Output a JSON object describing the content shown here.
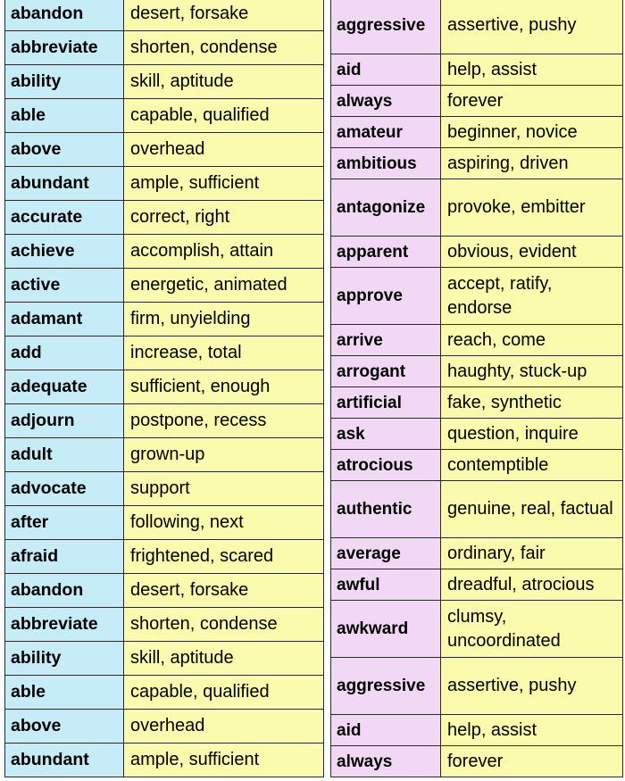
{
  "left": [
    {
      "word": "abandon",
      "syn": "desert, forsake"
    },
    {
      "word": "abbreviate",
      "syn": "shorten, condense"
    },
    {
      "word": "ability",
      "syn": "skill, aptitude"
    },
    {
      "word": "able",
      "syn": "capable, qualified"
    },
    {
      "word": "above",
      "syn": "overhead"
    },
    {
      "word": "abundant",
      "syn": "ample, sufficient"
    },
    {
      "word": "accurate",
      "syn": "correct, right"
    },
    {
      "word": "achieve",
      "syn": "accomplish, attain"
    },
    {
      "word": "active",
      "syn": "energetic, animated"
    },
    {
      "word": "adamant",
      "syn": "firm, unyielding"
    },
    {
      "word": "add",
      "syn": "increase, total"
    },
    {
      "word": "adequate",
      "syn": "sufficient, enough"
    },
    {
      "word": "adjourn",
      "syn": "postpone, recess"
    },
    {
      "word": "adult",
      "syn": "grown-up"
    },
    {
      "word": "advocate",
      "syn": "support"
    },
    {
      "word": "after",
      "syn": "following, next"
    },
    {
      "word": "afraid",
      "syn": "frightened, scared"
    },
    {
      "word": "abandon",
      "syn": "desert, forsake"
    },
    {
      "word": "abbreviate",
      "syn": "shorten, condense"
    },
    {
      "word": "ability",
      "syn": "skill, aptitude"
    },
    {
      "word": "able",
      "syn": "capable, qualified"
    },
    {
      "word": "above",
      "syn": "overhead"
    },
    {
      "word": "abundant",
      "syn": "ample, sufficient"
    }
  ],
  "right": [
    {
      "word": "aggressive",
      "syn": "assertive, pushy"
    },
    {
      "word": "aid",
      "syn": "help, assist"
    },
    {
      "word": "always",
      "syn": "forever"
    },
    {
      "word": "amateur",
      "syn": "beginner, novice"
    },
    {
      "word": "ambitious",
      "syn": "aspiring, driven"
    },
    {
      "word": "antagonize",
      "syn": "provoke, embitter"
    },
    {
      "word": "apparent",
      "syn": "obvious, evident"
    },
    {
      "word": "approve",
      "syn": "accept, ratify, endorse"
    },
    {
      "word": "arrive",
      "syn": "reach, come"
    },
    {
      "word": "arrogant",
      "syn": "haughty, stuck-up"
    },
    {
      "word": "artificial",
      "syn": "fake, synthetic"
    },
    {
      "word": "ask",
      "syn": "question, inquire"
    },
    {
      "word": "atrocious",
      "syn": "contemptible"
    },
    {
      "word": "authentic",
      "syn": "genuine, real, factual"
    },
    {
      "word": "average",
      "syn": "ordinary, fair"
    },
    {
      "word": "awful",
      "syn": "dreadful, atrocious"
    },
    {
      "word": "awkward",
      "syn": "clumsy, uncoordinated"
    },
    {
      "word": "aggressive",
      "syn": "assertive, pushy"
    },
    {
      "word": "aid",
      "syn": "help, assist"
    },
    {
      "word": "always",
      "syn": "forever"
    }
  ]
}
